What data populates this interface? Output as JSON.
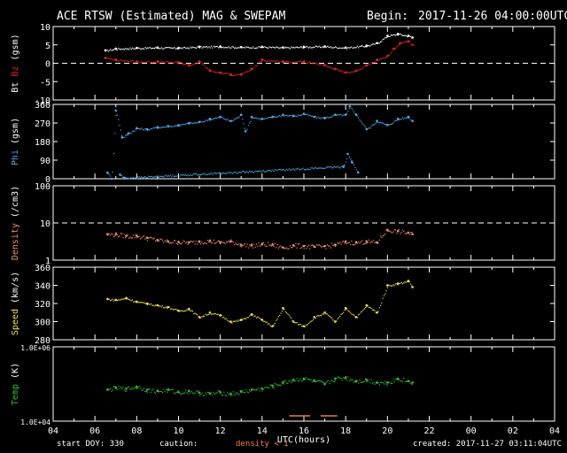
{
  "header": {
    "title": "ACE RTSW (Estimated) MAG & SWEPAM",
    "begin_label": "Begin:",
    "begin_value": "2017-11-26 04:00:00UTC"
  },
  "footer": {
    "start_doy": "start DOY: 330",
    "caution_label": "caution:",
    "caution_text": "density < 1",
    "created": "created: 2017-11-27 03:11:04UTC"
  },
  "colors": {
    "background": "#000000",
    "axes": "#ffffff",
    "bt": "#ffffff",
    "bz": "#dd2222",
    "phi": "#4aa8e6",
    "density": "#f09060",
    "speed": "#f0e040",
    "temp": "#30c030",
    "caution": "#f08040"
  },
  "chart_data": [
    {
      "type": "scatter",
      "panel": "mag",
      "ylabel_parts": [
        "Bt",
        "Bz",
        "(gsm)"
      ],
      "ylim": [
        -10,
        10
      ],
      "yticks": [
        10,
        5,
        0,
        -5,
        -10
      ],
      "dashed_reference": 0,
      "series": [
        {
          "name": "Bt",
          "x": [
            6.5,
            7,
            8,
            9,
            10,
            11,
            12,
            13,
            14,
            15,
            16,
            17,
            18,
            19,
            19.5,
            20,
            20.5,
            21,
            21.2
          ],
          "values": [
            3.5,
            4,
            4.2,
            4.3,
            4.2,
            4.5,
            4.6,
            4.4,
            4.5,
            4.3,
            4.5,
            4.6,
            4.3,
            4.8,
            5.5,
            7.5,
            8,
            7.5,
            7
          ]
        },
        {
          "name": "Bz",
          "x": [
            6.5,
            7,
            8,
            9,
            10,
            10.5,
            11,
            11.5,
            12,
            12.5,
            13,
            13.5,
            14,
            15,
            16,
            17,
            17.5,
            18,
            18.5,
            19,
            19.5,
            20,
            20.3,
            20.6,
            21,
            21.2
          ],
          "values": [
            1.5,
            1,
            0.5,
            0.5,
            0.3,
            -0.5,
            0.5,
            -2,
            -2.5,
            -3,
            -3,
            -1.5,
            1,
            0.5,
            0.5,
            -0.5,
            -1.5,
            -2.5,
            -2,
            -0.5,
            1,
            2,
            4,
            5.5,
            6,
            5
          ]
        }
      ]
    },
    {
      "type": "scatter",
      "panel": "phi",
      "ylabel_parts": [
        "Phi",
        "(gsm)"
      ],
      "ylim": [
        0,
        360
      ],
      "yticks": [
        360,
        270,
        180,
        90,
        0
      ],
      "series": [
        {
          "name": "Phi",
          "x": [
            6.6,
            6.8,
            7,
            7.3,
            7.6,
            8,
            8.5,
            9,
            9.5,
            10,
            10.5,
            11,
            11.5,
            12,
            12.5,
            13,
            13.2,
            13.5,
            14,
            14.5,
            15,
            15.5,
            16,
            16.5,
            17,
            17.5,
            18,
            18.2,
            18.5,
            19,
            19.5,
            20,
            20.5,
            21,
            21.2
          ],
          "values": [
            30,
            0,
            330,
            200,
            220,
            245,
            240,
            250,
            255,
            260,
            270,
            275,
            290,
            300,
            280,
            310,
            230,
            300,
            290,
            300,
            310,
            305,
            315,
            300,
            295,
            310,
            310,
            350,
            310,
            240,
            280,
            260,
            290,
            300,
            280
          ]
        },
        {
          "name": "Phi low",
          "x": [
            7.2,
            7.4,
            17.9,
            18.1,
            18.3,
            18.6
          ],
          "values": [
            20,
            5,
            60,
            120,
            80,
            30
          ]
        }
      ]
    },
    {
      "type": "scatter",
      "panel": "density",
      "ylabel_parts": [
        "Density",
        "(/cm3)"
      ],
      "ylim": [
        1,
        100
      ],
      "ylog": true,
      "yticks": [
        100,
        10,
        1
      ],
      "dashed_reference": 10,
      "series": [
        {
          "name": "Density",
          "x": [
            6.6,
            7,
            7.5,
            8,
            8.5,
            9,
            9.5,
            10,
            10.5,
            11,
            11.5,
            12,
            12.5,
            13,
            13.5,
            14,
            14.5,
            15,
            15.5,
            16,
            16.5,
            17,
            17.5,
            18,
            18.5,
            19,
            19.5,
            20,
            20.5,
            21,
            21.2
          ],
          "values": [
            5,
            5,
            4.5,
            4.5,
            4,
            3.5,
            3.2,
            3.1,
            3,
            3.2,
            3.3,
            3,
            3.2,
            2.6,
            2.5,
            2.7,
            2.6,
            2.2,
            2.5,
            2.4,
            2.3,
            2.4,
            2.6,
            3.1,
            3,
            3.2,
            3,
            6.5,
            6,
            5.5,
            5
          ]
        }
      ]
    },
    {
      "type": "scatter",
      "panel": "speed",
      "ylabel_parts": [
        "Speed",
        "(km/s)"
      ],
      "ylim": [
        280,
        360
      ],
      "yticks": [
        360,
        340,
        320,
        300,
        280
      ],
      "series": [
        {
          "name": "Speed",
          "x": [
            6.6,
            7,
            7.5,
            8,
            8.5,
            9,
            9.5,
            10,
            10.5,
            11,
            11.5,
            12,
            12.5,
            13,
            13.5,
            14,
            14.5,
            15,
            15.5,
            16,
            16.5,
            17,
            17.5,
            18,
            18.5,
            19,
            19.5,
            20,
            20.5,
            21,
            21.2
          ],
          "values": [
            325,
            324,
            326,
            322,
            320,
            318,
            316,
            312,
            314,
            305,
            310,
            307,
            300,
            302,
            308,
            302,
            295,
            315,
            300,
            295,
            305,
            310,
            300,
            315,
            305,
            318,
            310,
            340,
            342,
            345,
            338
          ]
        }
      ]
    },
    {
      "type": "scatter",
      "panel": "temp",
      "ylabel_parts": [
        "Temp",
        "(K)"
      ],
      "ylim": [
        10000,
        1000000
      ],
      "ylog": true,
      "yticks": [
        "1.0E+06",
        "1.0E+04"
      ],
      "series": [
        {
          "name": "Temp",
          "x": [
            6.6,
            7,
            7.5,
            8,
            8.5,
            9,
            9.5,
            10,
            10.5,
            11,
            11.5,
            12,
            12.5,
            13,
            13.5,
            14,
            14.5,
            15,
            15.5,
            16,
            16.5,
            17,
            17.5,
            18,
            18.5,
            19,
            19.5,
            20,
            20.5,
            21,
            21.2
          ],
          "values": [
            70000,
            80000,
            75000,
            85000,
            70000,
            65000,
            70000,
            60000,
            65000,
            58000,
            55000,
            60000,
            55000,
            62000,
            70000,
            75000,
            90000,
            110000,
            130000,
            140000,
            120000,
            100000,
            140000,
            150000,
            120000,
            130000,
            110000,
            110000,
            140000,
            120000,
            110000
          ]
        }
      ]
    }
  ],
  "x_axis": {
    "xlabel": "UTC(hours)",
    "ticks": [
      "04",
      "06",
      "08",
      "10",
      "12",
      "14",
      "16",
      "18",
      "20",
      "22",
      "00",
      "02",
      "04"
    ],
    "range_hours": [
      4,
      28
    ]
  }
}
